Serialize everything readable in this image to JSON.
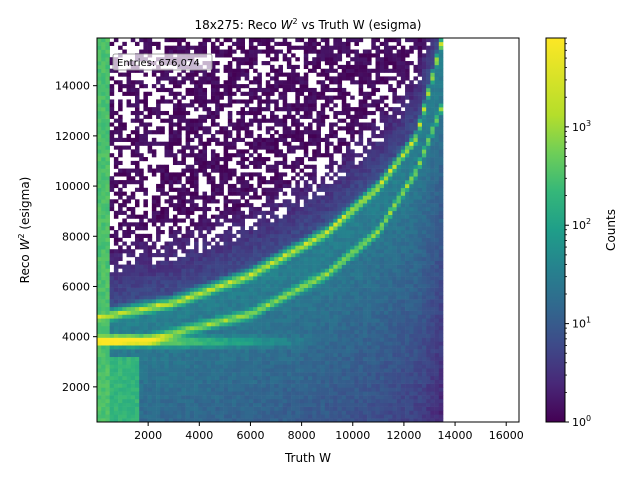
{
  "chart_data": {
    "type": "heatmap",
    "title": "18x275: Reco W² vs Truth W (esigma)",
    "title_parts": {
      "pre": "18x275: Reco ",
      "var": "W",
      "exp": "2",
      "post": " vs Truth W (esigma)"
    },
    "xlabel": "Truth W",
    "ylabel": "Reco W² (esigma)",
    "ylabel_parts": {
      "pre": "Reco ",
      "var": "W",
      "exp": "2",
      "post": " (esigma)"
    },
    "xlim": [
      0,
      16500
    ],
    "ylim": [
      600,
      15900
    ],
    "xticks": [
      2000,
      4000,
      6000,
      8000,
      10000,
      12000,
      14000,
      16000
    ],
    "yticks": [
      2000,
      4000,
      6000,
      8000,
      10000,
      12000,
      14000
    ],
    "annotation": "Entries: 676,074",
    "colorbar": {
      "label": "Counts",
      "scale": "log",
      "range": [
        1,
        8000
      ],
      "ticks": [
        {
          "value": 1,
          "base": "10",
          "exp": "0"
        },
        {
          "value": 10,
          "base": "10",
          "exp": "1"
        },
        {
          "value": 100,
          "base": "10",
          "exp": "2"
        },
        {
          "value": 1000,
          "base": "10",
          "exp": "3"
        }
      ],
      "colormap": "viridis"
    },
    "features": {
      "band_horizontal": {
        "reco_w2": 3800,
        "truth_w_range": [
          0,
          5000
        ],
        "peak_counts": 8000
      },
      "band_upper_curve": {
        "points": [
          [
            0,
            4800
          ],
          [
            3000,
            5400
          ],
          [
            6000,
            6500
          ],
          [
            9000,
            8200
          ],
          [
            11000,
            10000
          ],
          [
            12500,
            12000
          ],
          [
            13500,
            15900
          ]
        ],
        "counts": 300
      },
      "band_lower_curve": {
        "points": [
          [
            2000,
            3900
          ],
          [
            6000,
            4900
          ],
          [
            9000,
            6500
          ],
          [
            11000,
            8200
          ],
          [
            12500,
            10600
          ],
          [
            13800,
            14000
          ],
          [
            14400,
            15900
          ]
        ],
        "counts": 100
      },
      "sparse_region_counts": 1
    }
  }
}
